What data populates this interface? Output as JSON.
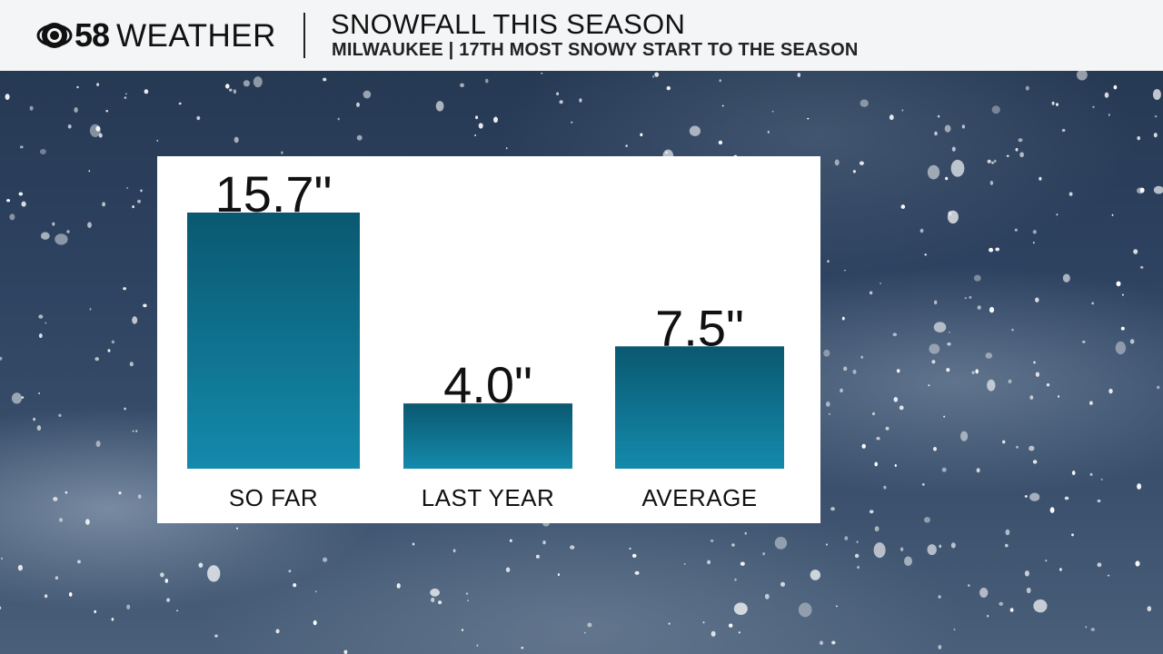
{
  "header": {
    "logo_number": "58",
    "logo_text": "WEATHER",
    "title": "SNOWFALL THIS SEASON",
    "subtitle": "MILWAUKEE | 17TH MOST SNOWY START TO THE SEASON"
  },
  "colors": {
    "bar_top": "#0a5870",
    "bar_bottom": "#148aac",
    "header_bg": "#f4f5f6",
    "panel_bg": "#ffffff"
  },
  "chart_data": {
    "type": "bar",
    "categories": [
      "SO FAR",
      "LAST YEAR",
      "AVERAGE"
    ],
    "values": [
      15.7,
      4.0,
      7.5
    ],
    "value_labels": [
      "15.7\"",
      "4.0\"",
      "7.5\""
    ],
    "unit": "inches",
    "title": "SNOWFALL THIS SEASON",
    "xlabel": "",
    "ylabel": "",
    "grid": false,
    "legend": "none"
  }
}
